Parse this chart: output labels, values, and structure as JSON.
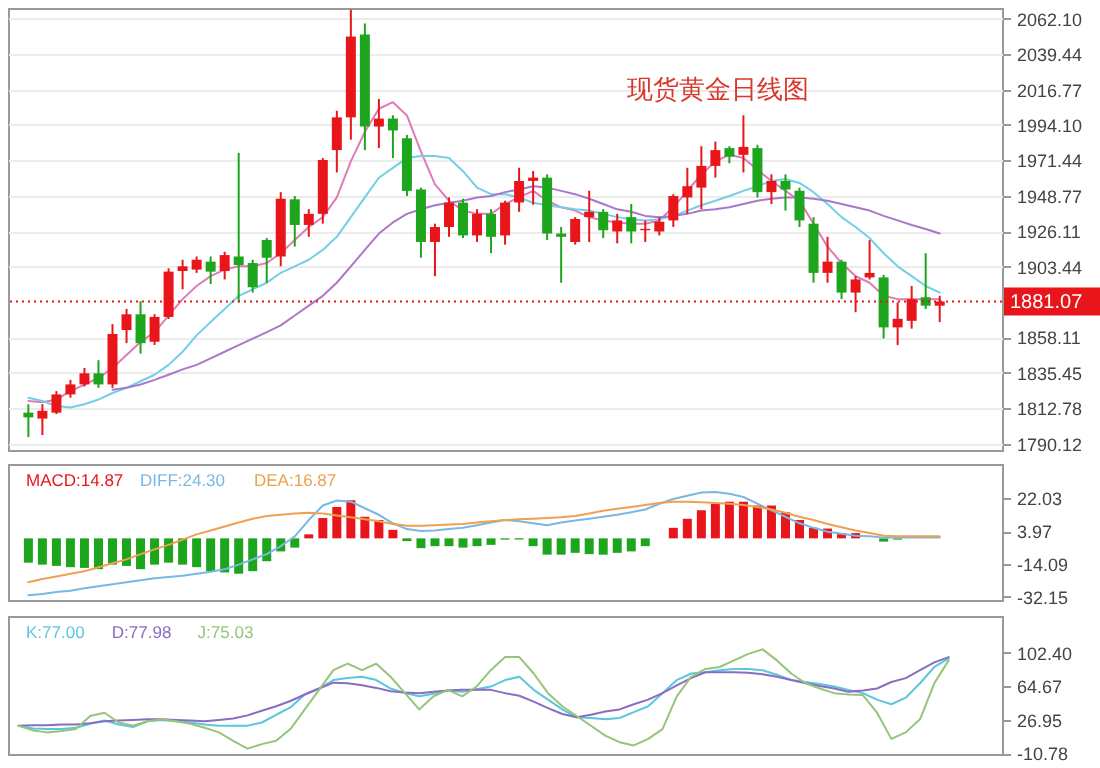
{
  "chart_data": [
    {
      "type": "candlestick",
      "title": "现货黄金日线图",
      "categories": [
        null,
        null,
        null,
        null,
        null,
        null,
        null,
        null,
        null,
        null,
        null,
        null,
        null,
        null,
        null,
        null,
        null,
        null,
        null,
        null,
        null,
        null,
        null,
        null,
        null,
        null,
        null,
        null,
        null,
        null,
        null,
        null,
        null,
        null,
        null,
        null,
        null,
        null,
        null,
        null,
        null,
        null,
        null,
        null,
        null,
        null,
        null,
        null,
        null,
        null,
        null,
        null,
        null,
        null,
        null,
        null,
        null,
        null,
        null,
        null,
        null,
        null,
        null,
        null,
        null,
        null
      ],
      "ohlc": [
        [
          1809.9,
          1815.3,
          1794.3,
          1806.9
        ],
        [
          1806.1,
          1815.3,
          1795.6,
          1811.1
        ],
        [
          1809.9,
          1823.7,
          1809.0,
          1821.6
        ],
        [
          1821.6,
          1830.9,
          1819.5,
          1828.0
        ],
        [
          1828.0,
          1838.5,
          1826.7,
          1835.1
        ],
        [
          1835.1,
          1843.5,
          1825.8,
          1828.0
        ],
        [
          1828.0,
          1866.6,
          1825.8,
          1860.3
        ],
        [
          1862.8,
          1876.3,
          1854.4,
          1872.9
        ],
        [
          1872.9,
          1881.3,
          1847.7,
          1854.4
        ],
        [
          1855.3,
          1872.9,
          1853.2,
          1871.2
        ],
        [
          1871.2,
          1902.3,
          1869.9,
          1900.2
        ],
        [
          1900.6,
          1907.8,
          1888.9,
          1903.6
        ],
        [
          1901.5,
          1909.9,
          1899.4,
          1907.8
        ],
        [
          1906.6,
          1909.9,
          1892.3,
          1900.2
        ],
        [
          1900.6,
          1912.9,
          1895.2,
          1910.8
        ],
        [
          1909.9,
          1976.3,
          1880.5,
          1904.4
        ],
        [
          1905.7,
          1907.8,
          1886.8,
          1890.2
        ],
        [
          1920.4,
          1921.7,
          1893.1,
          1909.1
        ],
        [
          1909.9,
          1951.1,
          1903.6,
          1946.9
        ],
        [
          1946.5,
          1948.6,
          1916.2,
          1930.1
        ],
        [
          1930.1,
          1940.2,
          1922.5,
          1937.2
        ],
        [
          1937.2,
          1972.9,
          1930.9,
          1971.7
        ],
        [
          1978.0,
          2003.2,
          1963.7,
          1999.0
        ],
        [
          1999.0,
          2068.0,
          1984.7,
          2050.7
        ],
        [
          2052.0,
          2059.1,
          1978.0,
          1993.1
        ],
        [
          1993.1,
          2010.8,
          1979.3,
          1998.2
        ],
        [
          1998.2,
          2000.3,
          1972.9,
          1990.6
        ],
        [
          1985.6,
          1987.7,
          1948.6,
          1951.9
        ],
        [
          1952.8,
          1954.0,
          1909.1,
          1919.2
        ],
        [
          1919.2,
          1930.9,
          1897.3,
          1928.8
        ],
        [
          1928.8,
          1947.7,
          1922.5,
          1944.4
        ],
        [
          1944.4,
          1946.9,
          1921.7,
          1923.4
        ],
        [
          1923.4,
          1940.2,
          1919.2,
          1937.2
        ],
        [
          1937.2,
          1940.2,
          1912.0,
          1922.5
        ],
        [
          1923.4,
          1945.6,
          1917.5,
          1944.4
        ],
        [
          1944.4,
          1966.7,
          1938.5,
          1958.3
        ],
        [
          1958.3,
          1964.6,
          1943.0,
          1960.4
        ],
        [
          1960.4,
          1962.5,
          1920.4,
          1924.6
        ],
        [
          1924.6,
          1928.8,
          1893.1,
          1922.5
        ],
        [
          1919.2,
          1935.1,
          1917.5,
          1933.9
        ],
        [
          1935.1,
          1952.0,
          1919.2,
          1938.5
        ],
        [
          1938.5,
          1940.2,
          1921.7,
          1926.7
        ],
        [
          1925.9,
          1937.2,
          1918.3,
          1933.0
        ],
        [
          1935.1,
          1943.5,
          1918.3,
          1925.9
        ],
        [
          1926.7,
          1933.0,
          1919.2,
          1927.6
        ],
        [
          1925.9,
          1935.1,
          1923.4,
          1932.2
        ],
        [
          1933.0,
          1949.8,
          1928.8,
          1948.6
        ],
        [
          1947.7,
          1966.7,
          1937.2,
          1954.9
        ],
        [
          1954.0,
          1980.5,
          1940.2,
          1967.9
        ],
        [
          1967.9,
          1983.5,
          1960.4,
          1978.0
        ],
        [
          1979.3,
          1980.5,
          1969.6,
          1973.8
        ],
        [
          1975.0,
          2000.3,
          1963.7,
          1980.1
        ],
        [
          1979.3,
          1981.4,
          1947.7,
          1951.1
        ],
        [
          1951.1,
          1962.5,
          1943.5,
          1958.3
        ],
        [
          1958.3,
          1962.5,
          1939.3,
          1952.8
        ],
        [
          1952.0,
          1954.0,
          1928.8,
          1933.0
        ],
        [
          1930.9,
          1935.1,
          1893.1,
          1899.4
        ],
        [
          1899.4,
          1922.5,
          1893.1,
          1906.6
        ],
        [
          1906.6,
          1907.8,
          1882.6,
          1886.8
        ],
        [
          1886.8,
          1897.3,
          1874.2,
          1895.2
        ],
        [
          1896.5,
          1920.4,
          1895.2,
          1899.4
        ],
        [
          1896.5,
          1898.1,
          1857.4,
          1864.5
        ],
        [
          1864.5,
          1880.5,
          1853.2,
          1870.0
        ],
        [
          1868.7,
          1891.0,
          1863.7,
          1882.6
        ],
        [
          1883.8,
          1912.0,
          1876.3,
          1878.4
        ],
        [
          1878.4,
          1884.7,
          1867.9,
          1881.07
        ]
      ],
      "colors": [
        "#1ea51e",
        "#e8161a",
        "#e8161a",
        "#e8161a",
        "#e8161a",
        "#1ea51e",
        "#e8161a",
        "#e8161a",
        "#1ea51e",
        "#e8161a",
        "#e8161a",
        "#e8161a",
        "#e8161a",
        "#1ea51e",
        "#e8161a",
        "#1ea51e",
        "#1ea51e",
        "#1ea51e",
        "#e8161a",
        "#1ea51e",
        "#e8161a",
        "#e8161a",
        "#e8161a",
        "#e8161a",
        "#1ea51e",
        "#e8161a",
        "#1ea51e",
        "#1ea51e",
        "#1ea51e",
        "#e8161a",
        "#e8161a",
        "#1ea51e",
        "#e8161a",
        "#1ea51e",
        "#e8161a",
        "#e8161a",
        "#e8161a",
        "#1ea51e",
        "#1ea51e",
        "#e8161a",
        "#e8161a",
        "#1ea51e",
        "#e8161a",
        "#1ea51e",
        "#e8161a",
        "#e8161a",
        "#e8161a",
        "#e8161a",
        "#e8161a",
        "#e8161a",
        "#1ea51e",
        "#e8161a",
        "#1ea51e",
        "#e8161a",
        "#1ea51e",
        "#1ea51e",
        "#1ea51e",
        "#e8161a",
        "#1ea51e",
        "#e8161a",
        "#e8161a",
        "#1ea51e",
        "#e8161a",
        "#e8161a",
        "#1ea51e",
        "#e8161a"
      ],
      "series": [
        {
          "type": "line",
          "color": "#e07ab8",
          "values": [
            1817.4,
            1816.6,
            1818.3,
            1823.7,
            1827.9,
            1832.1,
            1838.4,
            1846.8,
            1855.2,
            1861.5,
            1872.1,
            1882.6,
            1891.0,
            1897.3,
            1901.5,
            1903.6,
            1903.6,
            1905.7,
            1912.0,
            1920.4,
            1928.8,
            1935.1,
            1947.7,
            1970.8,
            1989.7,
            2004.5,
            2008.7,
            2000.2,
            1977.1,
            1956.1,
            1945.6,
            1939.3,
            1937.2,
            1937.2,
            1943.5,
            1947.7,
            1951.9,
            1945.6,
            1941.4,
            1939.3,
            1935.1,
            1933.0,
            1931.7,
            1930.9,
            1930.9,
            1933.0,
            1941.4,
            1951.9,
            1962.4,
            1970.8,
            1975.1,
            1972.9,
            1965.4,
            1958.2,
            1951.9,
            1945.6,
            1930.9,
            1916.2,
            1905.7,
            1897.3,
            1893.1,
            1884.7,
            1882.6,
            1882.6,
            1882.6,
            1882.6
          ]
        },
        {
          "type": "line",
          "color": "#72cfe6",
          "values": [
            1819.5,
            1817.4,
            1814.1,
            1813.2,
            1815.3,
            1818.3,
            1822.5,
            1825.8,
            1830.0,
            1834.2,
            1840.5,
            1848.9,
            1859.4,
            1867.9,
            1876.3,
            1884.7,
            1888.9,
            1893.1,
            1899.4,
            1903.6,
            1907.8,
            1914.1,
            1922.5,
            1935.1,
            1947.7,
            1960.3,
            1966.6,
            1972.9,
            1974.2,
            1974.2,
            1972.9,
            1964.5,
            1954.0,
            1949.8,
            1949.8,
            1947.7,
            1944.3,
            1942.7,
            1941.4,
            1940.1,
            1939.3,
            1937.2,
            1935.1,
            1933.8,
            1933.0,
            1933.8,
            1935.9,
            1939.3,
            1942.7,
            1945.6,
            1948.6,
            1951.9,
            1954.9,
            1958.2,
            1959.5,
            1957.0,
            1951.1,
            1943.5,
            1935.1,
            1928.8,
            1921.7,
            1912.0,
            1903.6,
            1897.3,
            1891.0,
            1886.8
          ]
        },
        {
          "type": "line",
          "color": "#a978cc",
          "values": [
            null,
            null,
            null,
            null,
            null,
            null,
            1824.6,
            1825.8,
            1827.9,
            1830.9,
            1834.2,
            1837.6,
            1840.5,
            1844.7,
            1848.9,
            1853.1,
            1857.3,
            1861.5,
            1865.8,
            1872.1,
            1878.4,
            1884.7,
            1893.1,
            1903.6,
            1914.1,
            1924.6,
            1931.7,
            1937.2,
            1940.1,
            1942.7,
            1944.3,
            1945.6,
            1947.7,
            1948.6,
            1951.1,
            1952.8,
            1954.9,
            1954.0,
            1951.9,
            1949.8,
            1946.9,
            1943.5,
            1940.1,
            1938.5,
            1935.9,
            1935.1,
            1935.9,
            1937.2,
            1939.3,
            1940.1,
            1941.4,
            1943.5,
            1945.6,
            1946.9,
            1947.7,
            1947.7,
            1946.9,
            1945.6,
            1943.5,
            1941.4,
            1939.3,
            1935.9,
            1933.0,
            1930.1,
            1927.5,
            1924.6
          ]
        }
      ],
      "ylim": [
        1786,
        2069
      ],
      "yticks": [
        {
          "value": 2062.1,
          "label": "2062.10"
        },
        2039.44,
        2016.77,
        {
          "value": 1994.1,
          "label": "1994.10"
        },
        1971.44,
        1948.77,
        1926.11,
        1903.44,
        1858.11,
        1835.45,
        1812.78,
        1790.12
      ],
      "ref_lines": [
        {
          "axis": "y",
          "value": 1881.07,
          "label": "1881.07",
          "color": "#e8161a",
          "line_style": "dotted"
        }
      ],
      "grid": "y",
      "tick_labels": "y"
    },
    {
      "type": "bar",
      "categories": [
        null,
        null,
        null,
        null,
        null,
        null,
        null,
        null,
        null,
        null,
        null,
        null,
        null,
        null,
        null,
        null,
        null,
        null,
        null,
        null,
        null,
        null,
        null,
        null,
        null,
        null,
        null,
        null,
        null,
        null,
        null,
        null,
        null,
        null,
        null,
        null,
        null,
        null,
        null,
        null,
        null,
        null,
        null,
        null,
        null,
        null,
        null,
        null,
        null,
        null,
        null,
        null,
        null,
        null,
        null,
        null,
        null,
        null,
        null,
        null,
        null,
        null,
        null,
        null,
        null,
        null
      ],
      "series": [
        {
          "name": "MACD:14.87",
          "color": "#e8161a",
          "values": [
            -13.4,
            -14.5,
            -15.2,
            -15.9,
            -16.3,
            -17.0,
            -14.5,
            -15.2,
            -17.0,
            -14.5,
            -13.4,
            -14.5,
            -15.9,
            -18.1,
            -18.8,
            -19.5,
            -18.1,
            -12.6,
            -7.2,
            -5.1,
            2.2,
            11.2,
            17.3,
            21.0,
            11.9,
            10.1,
            4.7,
            -1.5,
            -5.4,
            -4.3,
            -4.3,
            -5.1,
            -4.3,
            -3.6,
            -0.7,
            -0.7,
            -4.3,
            -9.0,
            -9.0,
            -8.0,
            -8.7,
            -9.0,
            -8.0,
            -7.2,
            -4.3,
            null,
            5.8,
            10.8,
            15.5,
            19.1,
            20.2,
            20.2,
            18.1,
            18.1,
            14.4,
            10.1,
            5.8,
            5.4,
            2.9,
            2.9,
            null,
            -1.8,
            -0.7,
            null,
            null,
            null
          ],
          "colors": [
            "#1ea51e",
            "#1ea51e",
            "#1ea51e",
            "#1ea51e",
            "#1ea51e",
            "#1ea51e",
            "#1ea51e",
            "#1ea51e",
            "#1ea51e",
            "#1ea51e",
            "#1ea51e",
            "#1ea51e",
            "#1ea51e",
            "#1ea51e",
            "#1ea51e",
            "#1ea51e",
            "#1ea51e",
            "#1ea51e",
            "#1ea51e",
            "#1ea51e",
            "#e8161a",
            "#e8161a",
            "#e8161a",
            "#e8161a",
            "#e8161a",
            "#e8161a",
            "#e8161a",
            "#1ea51e",
            "#1ea51e",
            "#1ea51e",
            "#1ea51e",
            "#1ea51e",
            "#1ea51e",
            "#1ea51e",
            "#1ea51e",
            "#1ea51e",
            "#1ea51e",
            "#1ea51e",
            "#1ea51e",
            "#1ea51e",
            "#1ea51e",
            "#1ea51e",
            "#1ea51e",
            "#1ea51e",
            "#1ea51e",
            "#e8161a",
            "#e8161a",
            "#e8161a",
            "#e8161a",
            "#e8161a",
            "#e8161a",
            "#e8161a",
            "#e8161a",
            "#e8161a",
            "#e8161a",
            "#e8161a",
            "#e8161a",
            "#e8161a",
            "#e8161a",
            "#e8161a",
            "#e8161a",
            "#1ea51e",
            "#1ea51e",
            "#e8161a",
            "#e8161a",
            "#e8161a"
          ]
        },
        {
          "name": "DIFF:24.30",
          "type": "line",
          "color": "#7ab8e4",
          "values": [
            -31.4,
            -30.7,
            -29.6,
            -28.9,
            -27.5,
            -26.4,
            -25.3,
            -24.2,
            -23.1,
            -22.0,
            -21.3,
            -20.6,
            -19.5,
            -18.4,
            -17.0,
            -14.5,
            -11.6,
            -8.7,
            -4.3,
            1.1,
            10.1,
            18.1,
            20.9,
            20.2,
            16.6,
            13.0,
            8.3,
            5.1,
            4.0,
            4.3,
            5.1,
            5.8,
            7.2,
            8.7,
            10.1,
            9.4,
            8.3,
            7.2,
            8.7,
            9.8,
            10.8,
            11.9,
            13.0,
            14.4,
            15.9,
            19.1,
            21.7,
            23.5,
            25.3,
            25.6,
            24.6,
            22.8,
            19.1,
            15.5,
            11.9,
            8.3,
            5.8,
            3.6,
            2.5,
            1.4,
            1.1,
            0.4,
            0.4,
            0.4,
            0.4,
            0.4
          ]
        },
        {
          "name": "DEA:16.87",
          "type": "line",
          "color": "#f0a050",
          "values": [
            -24.2,
            -22.4,
            -21.0,
            -19.5,
            -18.1,
            -15.9,
            -13.7,
            -11.6,
            -8.7,
            -6.1,
            -3.6,
            -0.7,
            2.2,
            4.3,
            6.5,
            8.7,
            10.8,
            12.3,
            13.0,
            13.7,
            14.1,
            13.7,
            12.6,
            11.6,
            10.5,
            9.4,
            7.9,
            6.9,
            6.9,
            7.2,
            7.6,
            7.9,
            8.7,
            9.4,
            10.1,
            10.5,
            10.8,
            11.2,
            11.6,
            12.3,
            13.7,
            15.2,
            16.3,
            17.3,
            18.4,
            19.5,
            20.2,
            20.2,
            19.9,
            19.5,
            19.1,
            18.4,
            17.3,
            15.9,
            14.1,
            11.9,
            10.1,
            7.9,
            6.1,
            4.3,
            2.9,
            1.4,
            1.1,
            1.1,
            1.1,
            1.1
          ]
        }
      ],
      "ylim": [
        -34,
        41
      ],
      "yticks": [
        22.03,
        3.97,
        -14.09,
        -32.15
      ],
      "legend": "top left",
      "tick_labels": "y"
    },
    {
      "type": "line",
      "categories": [
        null,
        null,
        null,
        null,
        null,
        null,
        null,
        null,
        null,
        null,
        null,
        null,
        null,
        null,
        null,
        null,
        null,
        null,
        null,
        null,
        null,
        null,
        null,
        null,
        null,
        null,
        null,
        null,
        null,
        null,
        null,
        null,
        null,
        null,
        null,
        null,
        null,
        null,
        null,
        null,
        null,
        null,
        null,
        null,
        null,
        null,
        null,
        null,
        null,
        null,
        null,
        null,
        null,
        null,
        null,
        null,
        null,
        null,
        null,
        null,
        null,
        null,
        null,
        null,
        null,
        null
      ],
      "series": [
        {
          "name": "K:77.00",
          "color": "#5cc6e0",
          "values": [
            20.1,
            17.1,
            16.4,
            16.4,
            17.9,
            22.3,
            26.0,
            21.6,
            18.6,
            25.2,
            26.7,
            25.2,
            23.8,
            21.6,
            20.1,
            20.1,
            20.1,
            23.8,
            32.5,
            40.7,
            55.3,
            62.0,
            71.5,
            73.7,
            75.2,
            71.5,
            62.0,
            56.8,
            53.2,
            56.1,
            59.8,
            58.3,
            61.2,
            64.2,
            71.5,
            75.2,
            60.5,
            49.5,
            38.5,
            29.6,
            28.9,
            27.4,
            28.9,
            35.5,
            42.1,
            56.8,
            71.5,
            78.9,
            80.3,
            82.6,
            84.0,
            84.0,
            82.6,
            77.4,
            71.5,
            69.3,
            67.1,
            64.2,
            60.5,
            56.8,
            49.5,
            44.3,
            51.7,
            67.9,
            86.2,
            95.8
          ]
        },
        {
          "name": "D:77.98",
          "color": "#8a6cc0",
          "values": [
            20.1,
            20.8,
            20.8,
            21.6,
            21.6,
            23.0,
            25.2,
            26.0,
            26.7,
            27.4,
            27.4,
            26.7,
            26.0,
            25.2,
            26.7,
            28.2,
            31.8,
            37.0,
            42.1,
            48.0,
            55.3,
            62.0,
            68.6,
            67.9,
            65.6,
            62.7,
            59.0,
            57.5,
            56.8,
            58.3,
            59.8,
            60.5,
            60.5,
            60.5,
            56.8,
            53.9,
            47.3,
            39.9,
            33.3,
            29.6,
            32.5,
            36.2,
            38.5,
            44.3,
            49.5,
            56.8,
            65.6,
            73.7,
            80.3,
            80.3,
            80.3,
            79.6,
            78.1,
            75.2,
            71.5,
            67.9,
            64.9,
            62.0,
            58.3,
            59.8,
            62.0,
            69.3,
            73.7,
            82.6,
            91.4,
            97.3
          ]
        },
        {
          "name": "J:75.03",
          "color": "#96c47a",
          "values": [
            20.1,
            14.9,
            12.7,
            14.2,
            16.4,
            31.1,
            34.8,
            23.8,
            20.1,
            25.2,
            27.4,
            25.2,
            22.3,
            17.9,
            12.7,
            3.2,
            -5.6,
            -0.5,
            3.2,
            16.4,
            38.5,
            60.5,
            82.6,
            89.9,
            82.6,
            89.9,
            75.2,
            56.8,
            38.5,
            53.2,
            60.5,
            53.2,
            64.2,
            82.6,
            97.3,
            97.3,
            78.9,
            56.8,
            42.1,
            31.1,
            20.1,
            9.1,
            1.7,
            -2.0,
            5.4,
            16.4,
            53.2,
            75.2,
            84.0,
            86.2,
            93.6,
            100.9,
            106.0,
            93.6,
            78.9,
            67.9,
            62.0,
            56.8,
            55.3,
            54.6,
            34.8,
            5.4,
            12.7,
            27.4,
            67.9,
            93.6
          ]
        }
      ],
      "ylim": [
        -11.6,
        143.5
      ],
      "yticks": [
        {
          "value": 102.4,
          "label": "102.40"
        },
        64.67,
        26.95,
        -10.78
      ],
      "legend": "top left",
      "tick_labels": "y"
    }
  ]
}
